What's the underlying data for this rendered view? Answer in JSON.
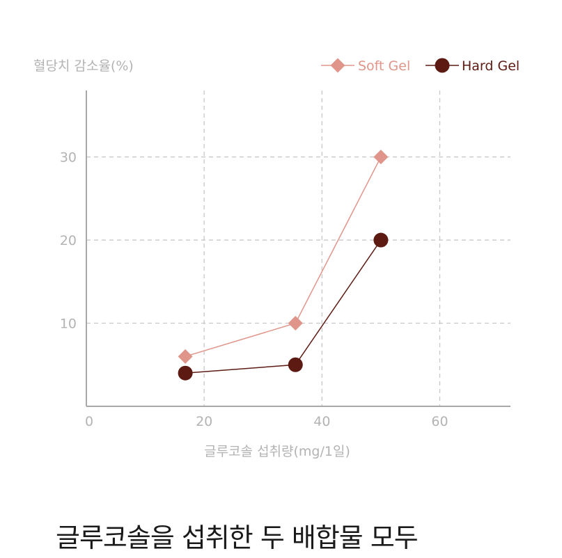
{
  "chart_data": {
    "type": "line",
    "ylabel": "혈당치 감소율(%)",
    "xlabel": "글루코솔 섭취량(mg/1일)",
    "xlim": [
      0,
      72
    ],
    "ylim": [
      0,
      38
    ],
    "xticks": [
      0,
      20,
      40,
      60
    ],
    "yticks": [
      10,
      20,
      30
    ],
    "grid": true,
    "legend_position": "top-right",
    "series": [
      {
        "name": "Soft Gel",
        "color": "#e0958a",
        "marker": "diamond",
        "points": [
          {
            "x": 16.8,
            "y": 6
          },
          {
            "x": 35.5,
            "y": 10
          },
          {
            "x": 50,
            "y": 30
          }
        ]
      },
      {
        "name": "Hard Gel",
        "color": "#5c1a12",
        "marker": "circle",
        "points": [
          {
            "x": 16.8,
            "y": 4
          },
          {
            "x": 35.5,
            "y": 5
          },
          {
            "x": 50,
            "y": 20
          }
        ]
      }
    ]
  },
  "caption": "글루코솔을 섭취한 두 배합물 모두"
}
